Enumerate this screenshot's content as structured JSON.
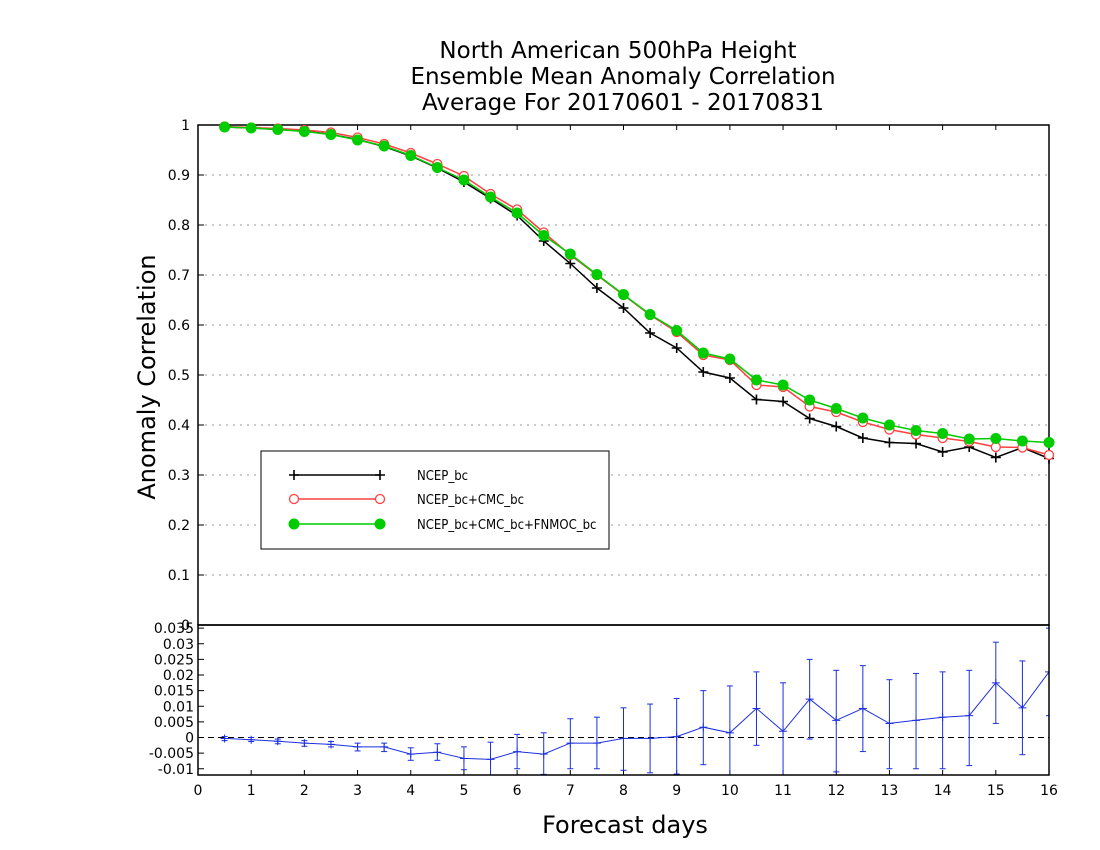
{
  "chart_data": [
    {
      "type": "line",
      "title": [
        "North American 500hPa Height",
        "Ensemble Mean Anomaly Correlation",
        "Average For 20170601 - 20170831"
      ],
      "xlabel": "Forecast days",
      "ylabel": "Anomaly Correlation",
      "xlim": [
        0,
        16
      ],
      "ylim": [
        0,
        1
      ],
      "x_ticks": [
        "0",
        "1",
        "2",
        "3",
        "4",
        "5",
        "6",
        "7",
        "8",
        "9",
        "10",
        "11",
        "12",
        "13",
        "14",
        "15",
        "16"
      ],
      "y_ticks": [
        "0",
        "0.1",
        "0.2",
        "0.3",
        "0.4",
        "0.5",
        "0.6",
        "0.7",
        "0.8",
        "0.9",
        "1"
      ],
      "grid": true,
      "legend_position": "lower-left",
      "x": [
        0.5,
        1,
        1.5,
        2,
        2.5,
        3,
        3.5,
        4,
        4.5,
        5,
        5.5,
        6,
        6.5,
        7,
        7.5,
        8,
        8.5,
        9,
        9.5,
        10,
        10.5,
        11,
        11.5,
        12,
        12.5,
        13,
        13.5,
        14,
        14.5,
        15,
        15.5,
        16
      ],
      "series": [
        {
          "name": "NCEP_bc",
          "color": "#000000",
          "marker": "plus",
          "values": [
            0.996,
            0.994,
            0.991,
            0.988,
            0.981,
            0.971,
            0.957,
            0.938,
            0.914,
            0.886,
            0.853,
            0.819,
            0.768,
            0.723,
            0.674,
            0.634,
            0.584,
            0.554,
            0.506,
            0.494,
            0.451,
            0.447,
            0.413,
            0.397,
            0.374,
            0.365,
            0.363,
            0.346,
            0.356,
            0.335,
            0.355,
            0.333
          ]
        },
        {
          "name": "NCEP_bc+CMC_bc",
          "color": "#ff4040",
          "marker": "open-circle",
          "values": [
            0.997,
            0.995,
            0.993,
            0.99,
            0.985,
            0.975,
            0.962,
            0.944,
            0.922,
            0.898,
            0.862,
            0.831,
            0.785,
            0.74,
            0.7,
            0.66,
            0.62,
            0.586,
            0.54,
            0.53,
            0.48,
            0.476,
            0.437,
            0.426,
            0.406,
            0.391,
            0.381,
            0.374,
            0.367,
            0.356,
            0.355,
            0.34
          ]
        },
        {
          "name": "NCEP_bc+CMC_bc+FNMOC_bc",
          "color": "#00cc00",
          "marker": "filled-circle",
          "values": [
            0.996,
            0.994,
            0.991,
            0.987,
            0.981,
            0.97,
            0.958,
            0.939,
            0.915,
            0.89,
            0.856,
            0.824,
            0.779,
            0.742,
            0.701,
            0.661,
            0.621,
            0.589,
            0.544,
            0.532,
            0.49,
            0.48,
            0.45,
            0.433,
            0.414,
            0.4,
            0.389,
            0.383,
            0.372,
            0.373,
            0.368,
            0.365
          ]
        }
      ]
    },
    {
      "type": "line",
      "xlabel": "Forecast days",
      "xlim": [
        0,
        16
      ],
      "ylim": [
        -0.012,
        0.036
      ],
      "x_ticks": [
        "0",
        "1",
        "2",
        "3",
        "4",
        "5",
        "6",
        "7",
        "8",
        "9",
        "10",
        "11",
        "12",
        "13",
        "14",
        "15",
        "16"
      ],
      "y_ticks": [
        "-0.01",
        "-0.005",
        "0",
        "0.005",
        "0.01",
        "0.015",
        "0.02",
        "0.025",
        "0.03",
        "0.035"
      ],
      "zero_line": "dashed",
      "series": [
        {
          "color": "#1c2fe0",
          "marker": "plus",
          "x": [
            0.5,
            1,
            1.5,
            2,
            2.5,
            3,
            3.5,
            4,
            4.5,
            5,
            5.5,
            6,
            6.5,
            7,
            7.5,
            8,
            8.5,
            9,
            9.5,
            10,
            10.5,
            11,
            11.5,
            12,
            12.5,
            13,
            13.5,
            14,
            14.5,
            15,
            15.5,
            16
          ],
          "values": [
            -0.0003,
            -0.0007,
            -0.0012,
            -0.0018,
            -0.0022,
            -0.003,
            -0.003,
            -0.0053,
            -0.0047,
            -0.0067,
            -0.007,
            -0.0045,
            -0.0053,
            -0.0018,
            -0.0018,
            -0.0003,
            -0.0003,
            0.0003,
            0.0033,
            0.0015,
            0.0093,
            0.002,
            0.0123,
            0.0055,
            0.0093,
            0.0045,
            0.0055,
            0.0065,
            0.007,
            0.0175,
            0.0095,
            0.021
          ],
          "error_low": [
            -0.001,
            -0.0013,
            -0.002,
            -0.0028,
            -0.003,
            -0.0043,
            -0.0045,
            -0.0073,
            -0.0073,
            -0.0103,
            -0.0125,
            -0.01,
            -0.0118,
            -0.01,
            -0.01,
            -0.0105,
            -0.0113,
            -0.0117,
            -0.0087,
            -0.0125,
            -0.0025,
            -0.0125,
            -0.0005,
            -0.011,
            -0.0045,
            -0.01,
            -0.01,
            -0.01,
            -0.009,
            0.0045,
            -0.0055,
            0.007
          ],
          "error_high": [
            0.0003,
            0.0,
            -0.0005,
            -0.001,
            -0.0013,
            -0.0018,
            -0.0018,
            -0.0033,
            -0.002,
            -0.003,
            -0.0015,
            0.001,
            0.0015,
            0.006,
            0.0065,
            0.0095,
            0.0107,
            0.0125,
            0.015,
            0.0165,
            0.021,
            0.0175,
            0.025,
            0.0215,
            0.023,
            0.0185,
            0.0205,
            0.021,
            0.0215,
            0.0305,
            0.0245,
            0.035
          ]
        }
      ]
    }
  ]
}
